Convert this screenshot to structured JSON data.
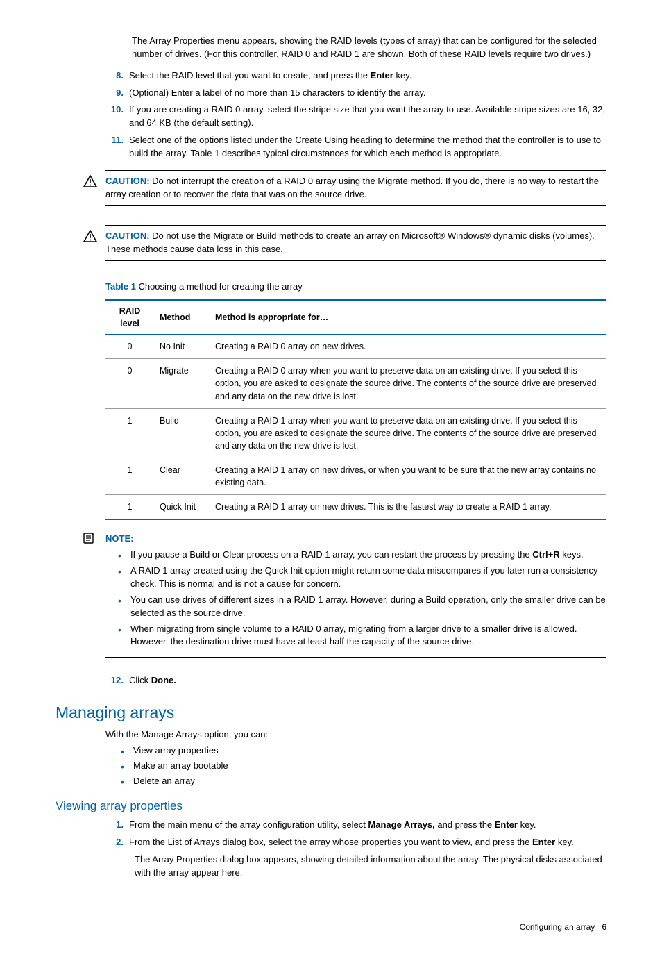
{
  "intro_para": "The Array Properties menu appears, showing the RAID levels (types of array) that can be configured for the selected number of drives. (For this controller, RAID 0 and RAID 1 are shown. Both of these RAID levels require two drives.)",
  "steps1": [
    {
      "num": "8.",
      "pre": "Select the RAID level that you want to create, and press the ",
      "bold": "Enter",
      "post": " key."
    },
    {
      "num": "9.",
      "pre": "(Optional) Enter a label of no more than 15 characters to identify the array.",
      "bold": "",
      "post": ""
    },
    {
      "num": "10.",
      "pre": "If you are creating a RAID 0 array, select the stripe size that you want the array to use. Available stripe sizes are 16, 32, and 64 KB (the default setting).",
      "bold": "",
      "post": ""
    },
    {
      "num": "11.",
      "pre": "Select one of the options listed under the Create Using heading to determine the method that the controller is to use to build the array. Table 1 describes typical circumstances for which each method is appropriate.",
      "bold": "",
      "post": ""
    }
  ],
  "caution1_label": "CAUTION:",
  "caution1_text": "  Do not interrupt the creation of a RAID 0 array using the Migrate method. If you do, there is no way to restart the array creation or to recover the data that was on the source drive.",
  "caution2_label": "CAUTION:",
  "caution2_text": "  Do not use the Migrate or Build methods to create an array on Microsoft® Windows® dynamic disks (volumes). These methods cause data loss in this case.",
  "table": {
    "title_num": "Table 1",
    "title_text": "  Choosing a method for creating the array",
    "headers": [
      "RAID level",
      "Method",
      "Method is appropriate for…"
    ],
    "col_classes": [
      "col-raid",
      "col-method",
      ""
    ],
    "rows": [
      [
        "0",
        "No Init",
        "Creating a RAID 0 array on new drives."
      ],
      [
        "0",
        "Migrate",
        "Creating a RAID 0 array when you want to preserve data on an existing drive. If you select this option, you are asked to designate the source drive. The contents of the source drive are preserved and any data on the new drive is lost."
      ],
      [
        "1",
        "Build",
        "Creating a RAID 1 array when you want to preserve data on an existing drive. If you select this option, you are asked to designate the source drive. The contents of the source drive are preserved and any data on the new drive is lost."
      ],
      [
        "1",
        "Clear",
        "Creating a RAID 1 array on new drives, or when you want to be sure that the new array contains no existing data."
      ],
      [
        "1",
        "Quick Init",
        "Creating a RAID 1 array on new drives. This is the fastest way to create a RAID 1 array."
      ]
    ]
  },
  "note_label": "NOTE:",
  "note_items": [
    {
      "pre": "If you pause a Build or Clear process on a RAID 1 array, you can restart the process by pressing the ",
      "bold": "Ctrl+R",
      "post": " keys."
    },
    {
      "pre": "A RAID 1 array created using the Quick Init option might return some data miscompares if you later run a consistency check. This is normal and is not a cause for concern.",
      "bold": "",
      "post": ""
    },
    {
      "pre": "You can use drives of different sizes in a RAID 1 array. However, during a Build operation, only the smaller drive can be selected as the source drive.",
      "bold": "",
      "post": ""
    },
    {
      "pre": "When migrating from single volume to a RAID 0 array, migrating from a larger drive to a smaller drive is allowed. However, the destination drive must have at least half the capacity of the source drive.",
      "bold": "",
      "post": ""
    }
  ],
  "step12": {
    "num": "12.",
    "pre": "Click ",
    "bold": "Done.",
    "post": ""
  },
  "managing_heading": "Managing arrays",
  "managing_intro": "With the Manage Arrays option, you can:",
  "managing_bullets": [
    "View array properties",
    "Make an array bootable",
    "Delete an array"
  ],
  "viewing_heading": "Viewing array properties",
  "viewing_steps": [
    {
      "num": "1.",
      "pre": "From the main menu of the array configuration utility, select ",
      "bold": "Manage Arrays,",
      "mid": " and press the ",
      "bold2": "Enter",
      "post": " key."
    },
    {
      "num": "2.",
      "pre": "From the List of Arrays dialog box, select the array whose properties you want to view, and press the ",
      "bold": "Enter",
      "mid": "",
      "bold2": "",
      "post": " key."
    }
  ],
  "viewing_result": "The Array Properties dialog box appears, showing detailed information about the array. The physical disks associated with the array appear here.",
  "footer_text": "Configuring an array",
  "footer_page": "6"
}
